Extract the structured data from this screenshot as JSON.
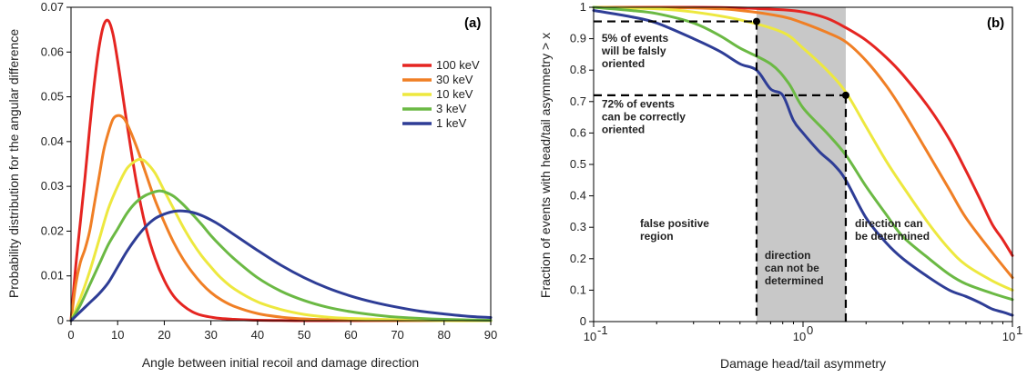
{
  "chart_data": [
    {
      "panel": "(a)",
      "type": "line",
      "xlabel": "Angle between initial recoil and damage direction",
      "ylabel": "Probability distribution for the angular difference",
      "xlim": [
        0,
        90
      ],
      "ylim": [
        0,
        0.07
      ],
      "xticks": [
        "0",
        "10",
        "20",
        "30",
        "40",
        "50",
        "60",
        "70",
        "80",
        "90"
      ],
      "yticks": [
        "0",
        "0.01",
        "0.02",
        "0.03",
        "0.04",
        "0.05",
        "0.06",
        "0.07"
      ],
      "legend_position": "top-right",
      "series": [
        {
          "name": "100 keV",
          "color": "#e52521",
          "x": [
            0,
            1,
            2,
            3,
            4,
            5,
            6,
            7,
            8,
            9,
            10,
            11,
            12,
            14,
            16,
            18,
            20,
            22,
            24,
            26,
            28,
            30,
            32,
            35,
            40,
            45,
            50,
            60,
            70,
            80,
            90
          ],
          "y": [
            0,
            0.012,
            0.022,
            0.032,
            0.043,
            0.053,
            0.061,
            0.066,
            0.067,
            0.064,
            0.058,
            0.051,
            0.044,
            0.031,
            0.021,
            0.014,
            0.009,
            0.0055,
            0.0034,
            0.002,
            0.0012,
            0.0008,
            0.0005,
            0.0003,
            0.0001,
            5e-05,
            0,
            0,
            0,
            0,
            0
          ]
        },
        {
          "name": "30 keV",
          "color": "#f07f25",
          "x": [
            0,
            1,
            2,
            3,
            4,
            5,
            6,
            7,
            8,
            9,
            10,
            11,
            12,
            14,
            16,
            18,
            20,
            22,
            24,
            26,
            28,
            30,
            32,
            35,
            40,
            45,
            50,
            55,
            60,
            70,
            80,
            90
          ],
          "y": [
            0,
            0.008,
            0.013,
            0.016,
            0.02,
            0.026,
            0.032,
            0.038,
            0.042,
            0.045,
            0.0458,
            0.0455,
            0.044,
            0.039,
            0.033,
            0.027,
            0.022,
            0.0175,
            0.0138,
            0.0108,
            0.0083,
            0.0063,
            0.0048,
            0.0032,
            0.0016,
            0.0008,
            0.0004,
            0.0002,
            0.0001,
            0,
            0,
            0
          ]
        },
        {
          "name": "10 keV",
          "color": "#ede83f",
          "x": [
            0,
            2,
            4,
            6,
            8,
            10,
            12,
            14,
            15,
            16,
            18,
            20,
            22,
            24,
            26,
            28,
            30,
            32,
            35,
            40,
            45,
            50,
            55,
            60,
            70,
            80,
            90
          ],
          "y": [
            0,
            0.005,
            0.011,
            0.018,
            0.025,
            0.03,
            0.034,
            0.0358,
            0.036,
            0.0355,
            0.033,
            0.029,
            0.025,
            0.021,
            0.0175,
            0.0145,
            0.012,
            0.0097,
            0.0071,
            0.0042,
            0.0025,
            0.0014,
            0.0008,
            0.0005,
            0.0002,
            0,
            0
          ]
        },
        {
          "name": "3 keV",
          "color": "#6bb944",
          "x": [
            0,
            2,
            4,
            6,
            8,
            10,
            12,
            14,
            16,
            18,
            19,
            20,
            22,
            24,
            26,
            28,
            30,
            32,
            35,
            40,
            45,
            50,
            55,
            60,
            65,
            70,
            80,
            90
          ],
          "y": [
            0,
            0.0035,
            0.008,
            0.0125,
            0.017,
            0.0205,
            0.024,
            0.0265,
            0.028,
            0.0288,
            0.029,
            0.0288,
            0.0278,
            0.026,
            0.0238,
            0.0215,
            0.019,
            0.0168,
            0.0138,
            0.0096,
            0.0066,
            0.0045,
            0.003,
            0.002,
            0.0013,
            0.0008,
            0.0003,
            0.0001
          ]
        },
        {
          "name": "1 keV",
          "color": "#2e3d96",
          "x": [
            0,
            2,
            4,
            6,
            8,
            10,
            12,
            14,
            16,
            18,
            20,
            22,
            24,
            26,
            28,
            30,
            32,
            35,
            40,
            45,
            50,
            55,
            60,
            65,
            70,
            75,
            80,
            85,
            90
          ],
          "y": [
            0,
            0.002,
            0.004,
            0.006,
            0.0085,
            0.012,
            0.0155,
            0.0185,
            0.021,
            0.0228,
            0.0238,
            0.0244,
            0.0245,
            0.0242,
            0.0235,
            0.0225,
            0.0213,
            0.0192,
            0.0157,
            0.0124,
            0.0096,
            0.0073,
            0.0055,
            0.0041,
            0.003,
            0.0021,
            0.0015,
            0.001,
            0.0007
          ]
        }
      ]
    },
    {
      "panel": "(b)",
      "type": "line",
      "xlabel": "Damage head/tail asymmetry",
      "ylabel": "Fraction of events with head/tail asymmetry > x",
      "xscale": "log",
      "xlim": [
        0.1,
        10
      ],
      "ylim": [
        0,
        1
      ],
      "xticks": [
        "10",
        "10",
        "10"
      ],
      "xtick_exponents": [
        "-1",
        "0",
        "1"
      ],
      "yticks": [
        "0",
        "0.1",
        "0.2",
        "0.3",
        "0.4",
        "0.5",
        "0.6",
        "0.7",
        "0.8",
        "0.9",
        "1"
      ],
      "shaded_region": {
        "x0": 0.6,
        "x1": 1.6,
        "color": "#c8c8c8"
      },
      "markers": [
        {
          "x": 0.6,
          "y": 0.955
        },
        {
          "x": 1.6,
          "y": 0.72
        }
      ],
      "annotations": [
        {
          "lines": [
            "5% of events",
            "will be falsly",
            "oriented"
          ],
          "x": 0.105,
          "y": 0.89
        },
        {
          "lines": [
            "72% of events",
            "can be correctly",
            "oriented"
          ],
          "x": 0.105,
          "y": 0.68
        },
        {
          "lines": [
            "false positive",
            "region"
          ],
          "x": 0.16,
          "y": 0.3
        },
        {
          "lines": [
            "direction",
            "can not be",
            "determined"
          ],
          "x": 0.63,
          "y": 0.2
        },
        {
          "lines": [
            "direction can",
            "be determined"
          ],
          "x": 1.7,
          "y": 0.3
        }
      ],
      "series": [
        {
          "name": "100 keV",
          "color": "#e52521",
          "x": [
            0.1,
            0.3,
            0.5,
            0.8,
            1.0,
            1.3,
            1.6,
            2.0,
            2.5,
            3.0,
            4.0,
            5.0,
            6.0,
            7.0,
            8.0,
            9.0,
            10.0
          ],
          "y": [
            1,
            1,
            0.998,
            0.992,
            0.985,
            0.965,
            0.935,
            0.895,
            0.84,
            0.785,
            0.68,
            0.58,
            0.48,
            0.39,
            0.31,
            0.26,
            0.21
          ]
        },
        {
          "name": "30 keV",
          "color": "#f07f25",
          "x": [
            0.1,
            0.3,
            0.5,
            0.8,
            1.0,
            1.3,
            1.6,
            2.0,
            2.5,
            3.0,
            4.0,
            5.0,
            6.0,
            8.0,
            10.0
          ],
          "y": [
            1,
            0.998,
            0.99,
            0.97,
            0.95,
            0.92,
            0.89,
            0.83,
            0.75,
            0.67,
            0.53,
            0.42,
            0.33,
            0.22,
            0.14
          ]
        },
        {
          "name": "10 keV",
          "color": "#ede83f",
          "x": [
            0.1,
            0.2,
            0.3,
            0.5,
            0.8,
            1.0,
            1.3,
            1.6,
            2.0,
            2.5,
            3.0,
            4.0,
            5.0,
            6.0,
            8.0,
            10.0
          ],
          "y": [
            1,
            0.995,
            0.985,
            0.96,
            0.92,
            0.87,
            0.8,
            0.73,
            0.62,
            0.51,
            0.43,
            0.31,
            0.23,
            0.18,
            0.13,
            0.1
          ]
        },
        {
          "name": "3 keV",
          "color": "#6bb944",
          "x": [
            0.1,
            0.15,
            0.2,
            0.3,
            0.4,
            0.5,
            0.7,
            0.85,
            1.0,
            1.3,
            1.6,
            2.0,
            2.5,
            3.0,
            4.0,
            5.0,
            6.0,
            8.0,
            10.0
          ],
          "y": [
            1,
            0.99,
            0.98,
            0.95,
            0.91,
            0.87,
            0.82,
            0.76,
            0.68,
            0.6,
            0.53,
            0.43,
            0.34,
            0.27,
            0.2,
            0.15,
            0.12,
            0.09,
            0.07
          ]
        },
        {
          "name": "1 keV",
          "color": "#2e3d96",
          "x": [
            0.1,
            0.15,
            0.2,
            0.3,
            0.4,
            0.5,
            0.6,
            0.7,
            0.8,
            0.9,
            1.0,
            1.2,
            1.4,
            1.6,
            2.0,
            2.5,
            3.0,
            4.0,
            5.0,
            6.0,
            7.0,
            8.0,
            9.0,
            10.0
          ],
          "y": [
            0.99,
            0.97,
            0.95,
            0.9,
            0.86,
            0.82,
            0.8,
            0.74,
            0.72,
            0.64,
            0.6,
            0.54,
            0.5,
            0.45,
            0.33,
            0.25,
            0.2,
            0.14,
            0.1,
            0.08,
            0.06,
            0.04,
            0.03,
            0.02
          ]
        }
      ]
    }
  ]
}
